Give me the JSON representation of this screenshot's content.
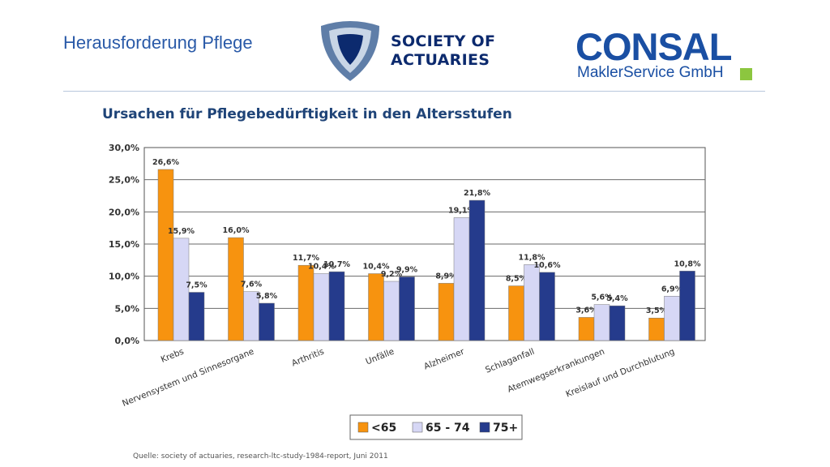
{
  "slide": {
    "title": "Herausforderung Pflege"
  },
  "logos": {
    "soa_line1": "SOCIETY OF",
    "soa_line2": "ACTUARIES",
    "consal_name": "CONSAL",
    "consal_sub": "MaklerService GmbH"
  },
  "colors": {
    "series_lt65": "#f7930f",
    "series_65_74": "#d6d7f5",
    "series_75plus": "#253b8c",
    "brand_blue": "#1a4fa3",
    "brand_green": "#8cc63f"
  },
  "source": "Quelle: society of actuaries, research-ltc-study-1984-report, Juni 2011",
  "chart_data": {
    "type": "bar",
    "title": "Ursachen für Pflegebedürftigkeit in den Altersstufen",
    "xlabel": "",
    "ylabel": "",
    "ylim": [
      0,
      30
    ],
    "yticks": [
      "0,0%",
      "5,0%",
      "10,0%",
      "15,0%",
      "20,0%",
      "25,0%",
      "30,0%"
    ],
    "grid": true,
    "legend_position": "bottom",
    "categories": [
      "Krebs",
      "Nervensystem und Sinnesorgane",
      "Arthritis",
      "Unfälle",
      "Alzheimer",
      "Schlaganfall",
      "Atemwegserkrankungen",
      "Kreislauf und Durchblutung"
    ],
    "series": [
      {
        "name": "<65",
        "values": [
          26.6,
          16.0,
          11.7,
          10.4,
          8.9,
          8.5,
          3.6,
          3.5
        ],
        "labels": [
          "26,6%",
          "16,0%",
          "11,7%",
          "10,4%",
          "8,9%",
          "8,5%",
          "3,6%",
          "3,5%"
        ]
      },
      {
        "name": "65 - 74",
        "values": [
          15.9,
          7.6,
          10.4,
          9.2,
          19.1,
          11.8,
          5.6,
          6.9
        ],
        "labels": [
          "15,9%",
          "7,6%",
          "10,4%",
          "9,2%",
          "19,1%",
          "11,8%",
          "5,6%",
          "6,9%"
        ]
      },
      {
        "name": "75+",
        "values": [
          7.5,
          5.8,
          10.7,
          9.9,
          21.8,
          10.6,
          5.4,
          10.8
        ],
        "labels": [
          "7,5%",
          "5,8%",
          "10,7%",
          "9,9%",
          "21,8%",
          "10,6%",
          "5,4%",
          "10,8%"
        ]
      }
    ]
  }
}
